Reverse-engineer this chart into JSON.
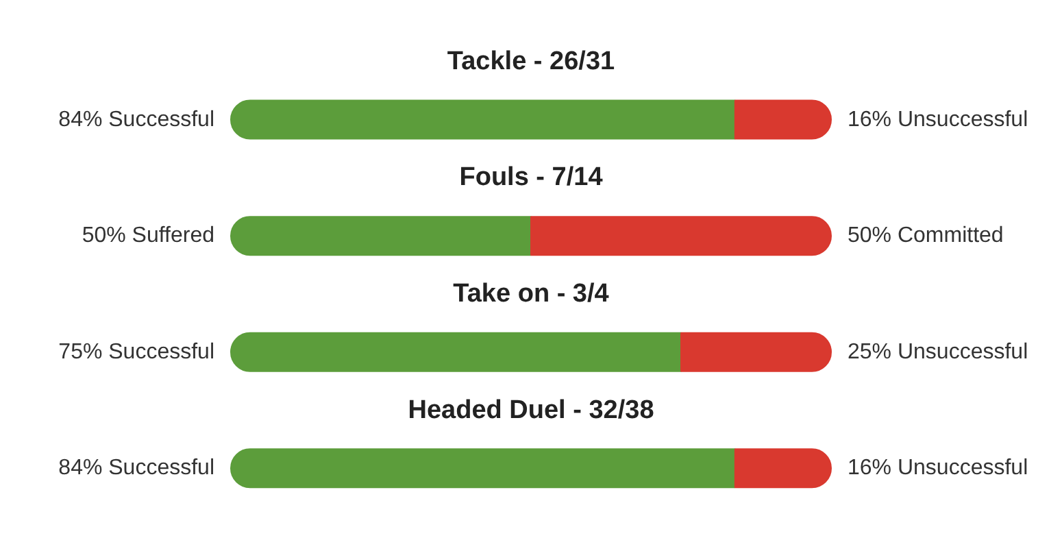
{
  "chart_data": {
    "type": "bar",
    "orientation": "horizontal",
    "stacked": true,
    "categories": [
      "Tackle - 26/31",
      "Fouls - 7/14",
      "Take on - 3/4",
      "Headed Duel - 32/38"
    ],
    "series": [
      {
        "color": "#5c9d3b",
        "values": [
          84,
          50,
          75,
          84
        ],
        "value_labels": [
          "84% Successful",
          "50% Suffered",
          "75% Successful",
          "84% Successful"
        ]
      },
      {
        "color": "#d9392f",
        "values": [
          16,
          50,
          25,
          16
        ],
        "value_labels": [
          "16% Unsuccessful",
          "50% Committed",
          "25% Unsuccessful",
          "16% Unsuccessful"
        ]
      }
    ],
    "xlim": [
      0,
      100
    ],
    "tick_labels": false,
    "grid": false
  }
}
